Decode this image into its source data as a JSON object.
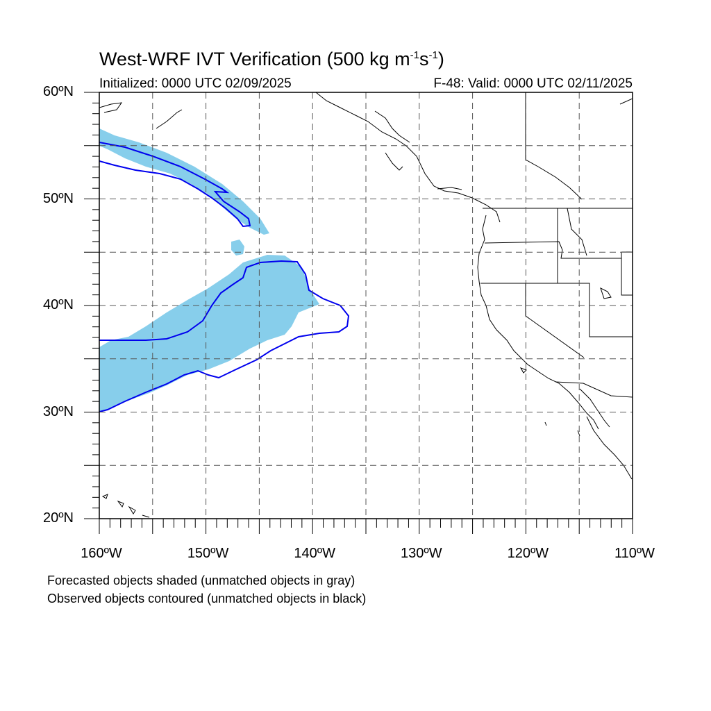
{
  "title": {
    "main": "West-WRF IVT Verification (500 kg m",
    "exp1": "-1",
    "mid": "s",
    "exp2": "-1",
    "tail": ")"
  },
  "subtitle_left": "Initialized: 0000 UTC 02/09/2025",
  "subtitle_right": "F-48: Valid: 0000 UTC 02/11/2025",
  "notes": [
    "Forecasted objects shaded (unmatched objects in gray)",
    "Observed objects contoured (unmatched objects in black)"
  ],
  "map": {
    "lon_range": [
      -160,
      -110
    ],
    "lat_range": [
      20,
      60
    ],
    "lat_labels": [
      {
        "lat": 60,
        "text": "60ºN"
      },
      {
        "lat": 50,
        "text": "50ºN"
      },
      {
        "lat": 40,
        "text": "40ºN"
      },
      {
        "lat": 30,
        "text": "30ºN"
      },
      {
        "lat": 20,
        "text": "20ºN"
      }
    ],
    "lon_labels": [
      {
        "lon": -160,
        "text": "160ºW"
      },
      {
        "lon": -150,
        "text": "150ºW"
      },
      {
        "lon": -140,
        "text": "140ºW"
      },
      {
        "lon": -130,
        "text": "130ºW"
      },
      {
        "lon": -120,
        "text": "120ºW"
      },
      {
        "lon": -110,
        "text": "110ºW"
      }
    ],
    "grid_lons": [
      -155,
      -150,
      -145,
      -140,
      -135,
      -130,
      -125,
      -120,
      -115
    ],
    "grid_lats": [
      25,
      30,
      35,
      40,
      45,
      50,
      55
    ],
    "colors": {
      "forecast_fill": "#87ceeb",
      "observed_contour": "#0000ee",
      "coastline": "#000000",
      "grid": "#555555"
    }
  }
}
